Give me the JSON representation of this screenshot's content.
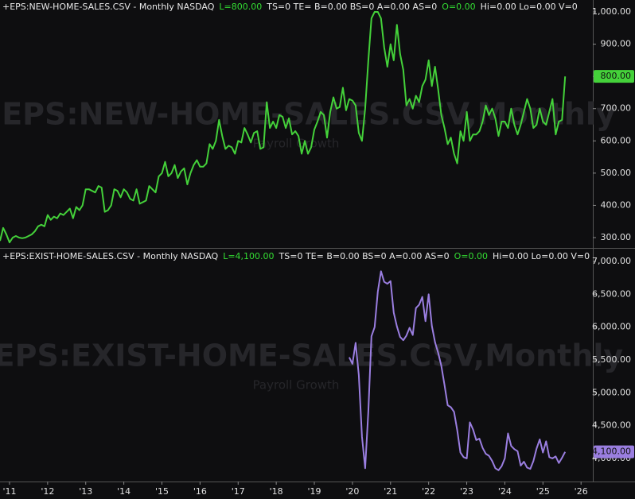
{
  "chart_data": [
    {
      "type": "line",
      "header": [
        {
          "text": "+EPS:NEW-HOME-SALES.CSV - Monthly  NASDAQ",
          "color": "#e8e8e8"
        },
        {
          "text": "L=800.00",
          "color": "#33dd33"
        },
        {
          "text": "TS=0  TE=  B=0.00  BS=0  A=0.00  AS=0",
          "color": "#e8e8e8"
        },
        {
          "text": "O=0.00",
          "color": "#33dd33"
        },
        {
          "text": "Hi=0.00  Lo=0.00  V=0",
          "color": "#e8e8e8"
        }
      ],
      "watermark": "+EPS:NEW-HOME-SALES.CSV,Monthly",
      "watermark_subtitle": "Payroll Growth",
      "color": "#44d13a",
      "values": [
        290,
        330,
        310,
        285,
        300,
        305,
        300,
        298,
        300,
        305,
        310,
        320,
        335,
        340,
        335,
        370,
        355,
        365,
        360,
        375,
        370,
        380,
        390,
        360,
        395,
        385,
        400,
        450,
        450,
        445,
        440,
        460,
        455,
        380,
        385,
        400,
        450,
        445,
        425,
        450,
        440,
        420,
        415,
        450,
        405,
        410,
        415,
        460,
        450,
        440,
        490,
        500,
        535,
        490,
        500,
        525,
        485,
        505,
        515,
        465,
        500,
        525,
        540,
        520,
        520,
        530,
        590,
        575,
        600,
        665,
        615,
        575,
        585,
        580,
        560,
        600,
        595,
        640,
        620,
        595,
        625,
        630,
        575,
        580,
        720,
        640,
        660,
        640,
        680,
        675,
        640,
        670,
        620,
        630,
        615,
        560,
        600,
        560,
        580,
        635,
        660,
        690,
        680,
        610,
        690,
        735,
        700,
        705,
        765,
        695,
        730,
        725,
        710,
        625,
        600,
        700,
        850,
        980,
        1000,
        1000,
        980,
        890,
        830,
        900,
        850,
        960,
        870,
        820,
        710,
        730,
        700,
        740,
        720,
        770,
        790,
        850,
        770,
        830,
        760,
        680,
        640,
        590,
        610,
        560,
        530,
        630,
        600,
        690,
        600,
        620,
        620,
        630,
        660,
        710,
        680,
        700,
        670,
        615,
        660,
        660,
        640,
        700,
        650,
        620,
        650,
        690,
        730,
        700,
        640,
        650,
        700,
        660,
        650,
        690,
        730,
        620,
        660,
        665,
        800,
        null,
        null,
        null,
        null,
        null
      ],
      "ylim": [
        268,
        1037
      ],
      "yticks": [
        {
          "value": 300,
          "label": "300.00"
        },
        {
          "value": 400,
          "label": "400.00"
        },
        {
          "value": 500,
          "label": "500.00"
        },
        {
          "value": 600,
          "label": "600.00"
        },
        {
          "value": 700,
          "label": "700.00"
        },
        {
          "value": 800,
          "label": "800.00"
        },
        {
          "value": 900,
          "label": "900.00"
        },
        {
          "value": 1000,
          "label": "1,000.00"
        }
      ],
      "price_marker": {
        "value": 800,
        "label": "800.00"
      }
    },
    {
      "type": "line",
      "header": [
        {
          "text": "+EPS:EXIST-HOME-SALES.CSV - Monthly  NASDAQ",
          "color": "#e8e8e8"
        },
        {
          "text": "L=4,100.00",
          "color": "#33dd33"
        },
        {
          "text": "TS=0  TE=  B=0.00  BS=0  A=0.00  AS=0",
          "color": "#e8e8e8"
        },
        {
          "text": "O=0.00",
          "color": "#33dd33"
        },
        {
          "text": "Hi=0.00  Lo=0.00  V=0",
          "color": "#e8e8e8"
        }
      ],
      "watermark": "+EPS:EXIST-HOME-SALES.CSV,Monthly",
      "watermark_subtitle": "Payroll Growth",
      "color": "#9a7ee0",
      "categories": [
        null,
        null,
        null,
        "'11",
        null,
        null,
        null,
        null,
        null,
        null,
        null,
        null,
        null,
        null,
        null,
        "'12",
        null,
        null,
        null,
        null,
        null,
        null,
        null,
        null,
        null,
        null,
        null,
        "'13",
        null,
        null,
        null,
        null,
        null,
        null,
        null,
        null,
        null,
        null,
        null,
        "'14",
        null,
        null,
        null,
        null,
        null,
        null,
        null,
        null,
        null,
        null,
        null,
        "'15",
        null,
        null,
        null,
        null,
        null,
        null,
        null,
        null,
        null,
        null,
        null,
        "'16",
        null,
        null,
        null,
        null,
        null,
        null,
        null,
        null,
        null,
        null,
        null,
        "'17",
        null,
        null,
        null,
        null,
        null,
        null,
        null,
        null,
        null,
        null,
        null,
        "'18",
        null,
        null,
        null,
        null,
        null,
        null,
        null,
        null,
        null,
        null,
        null,
        "'19",
        null,
        null,
        null,
        null,
        null,
        null,
        null,
        null,
        null,
        null,
        null,
        "'20",
        null,
        null,
        null,
        null,
        null,
        null,
        null,
        null,
        null,
        null,
        null,
        "'21",
        null,
        null,
        null,
        null,
        null,
        null,
        null,
        null,
        null,
        null,
        null,
        "'22",
        null,
        null,
        null,
        null,
        null,
        null,
        null,
        null,
        null,
        null,
        null,
        "'23",
        null,
        null,
        null,
        null,
        null,
        null,
        null,
        null,
        null,
        null,
        null,
        "'24",
        null,
        null,
        null,
        null,
        null,
        null,
        null,
        null,
        null,
        null,
        null,
        "'25",
        null,
        null,
        null,
        null,
        null,
        null,
        null,
        null,
        null,
        null,
        null,
        "'26"
      ],
      "values": [
        null,
        null,
        null,
        null,
        null,
        null,
        null,
        null,
        null,
        null,
        null,
        null,
        null,
        null,
        null,
        null,
        null,
        null,
        null,
        null,
        null,
        null,
        null,
        null,
        null,
        null,
        null,
        null,
        null,
        null,
        null,
        null,
        null,
        null,
        null,
        null,
        null,
        null,
        null,
        null,
        null,
        null,
        null,
        null,
        null,
        null,
        null,
        null,
        null,
        null,
        null,
        null,
        null,
        null,
        null,
        null,
        null,
        null,
        null,
        null,
        null,
        null,
        null,
        null,
        null,
        null,
        null,
        null,
        null,
        null,
        null,
        null,
        null,
        null,
        null,
        null,
        null,
        null,
        null,
        null,
        null,
        null,
        null,
        null,
        null,
        null,
        null,
        null,
        null,
        null,
        null,
        null,
        null,
        null,
        null,
        null,
        null,
        null,
        null,
        null,
        null,
        null,
        null,
        null,
        null,
        null,
        null,
        null,
        null,
        null,
        5540,
        5440,
        5760,
        5270,
        4330,
        3850,
        4720,
        5860,
        6000,
        6540,
        6850,
        6690,
        6660,
        6700,
        6220,
        6010,
        5850,
        5800,
        5870,
        5990,
        5880,
        6290,
        6340,
        6460,
        6090,
        6500,
        6020,
        5770,
        5610,
        5410,
        5120,
        4810,
        4780,
        4710,
        4430,
        4090,
        4020,
        4000,
        4550,
        4440,
        4280,
        4300,
        4160,
        4070,
        4040,
        3960,
        3850,
        3820,
        3880,
        4000,
        4380,
        4190,
        4140,
        4110,
        3890,
        3950,
        3860,
        3840,
        3960,
        4150,
        4290,
        4090,
        4260,
        4020,
        4000,
        4030,
        3930,
        4010,
        4100,
        null,
        null,
        null,
        null,
        null
      ],
      "ylim": [
        3648,
        7182
      ],
      "yticks": [
        {
          "value": 4000,
          "label": "4,000.00"
        },
        {
          "value": 4500,
          "label": "4,500.00"
        },
        {
          "value": 5000,
          "label": "5,000.00"
        },
        {
          "value": 5500,
          "label": "5,500.00"
        },
        {
          "value": 6000,
          "label": "6,000.00"
        },
        {
          "value": 6500,
          "label": "6,500.00"
        },
        {
          "value": 7000,
          "label": "7,000.00"
        }
      ],
      "price_marker": {
        "value": 4100,
        "label": "4,100.00"
      }
    }
  ]
}
